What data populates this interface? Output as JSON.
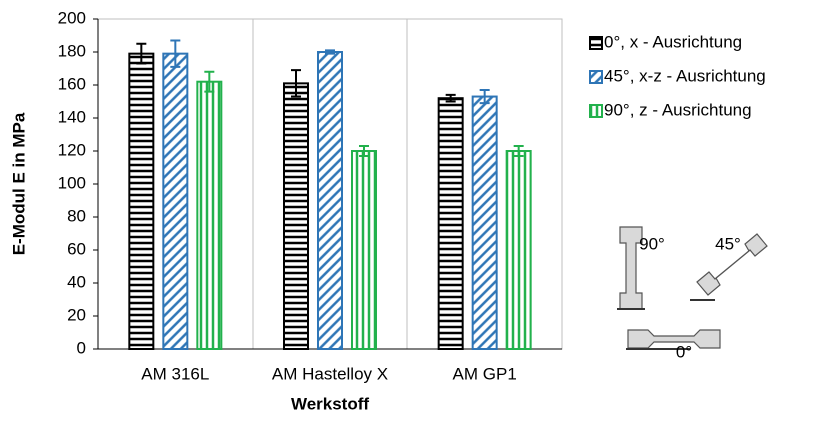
{
  "chart_data": {
    "type": "bar",
    "xlabel": "Werkstoff",
    "ylabel": "E-Modul E in MPa",
    "categories": [
      "AM 316L",
      "AM Hastelloy X",
      "AM GP1"
    ],
    "series": [
      {
        "name": "0°, x - Ausrichtung",
        "color": "#000000",
        "pattern": "horizontal",
        "values": [
          179,
          161,
          152
        ],
        "errors": [
          6,
          8,
          2
        ]
      },
      {
        "name": "45°, x-z - Ausrichtung",
        "color": "#2e75b6",
        "pattern": "diagonal",
        "values": [
          179,
          180,
          153
        ],
        "errors": [
          8,
          1,
          4
        ]
      },
      {
        "name": "90°, z - Ausrichtung",
        "color": "#22b14c",
        "pattern": "vertical",
        "values": [
          162,
          120,
          120
        ],
        "errors": [
          6,
          3,
          3
        ]
      }
    ],
    "ylim": [
      0,
      200
    ],
    "yticks": [
      0,
      20,
      40,
      60,
      80,
      100,
      120,
      140,
      160,
      180,
      200
    ],
    "annotations": [
      "90°",
      "45°",
      "0°"
    ]
  }
}
